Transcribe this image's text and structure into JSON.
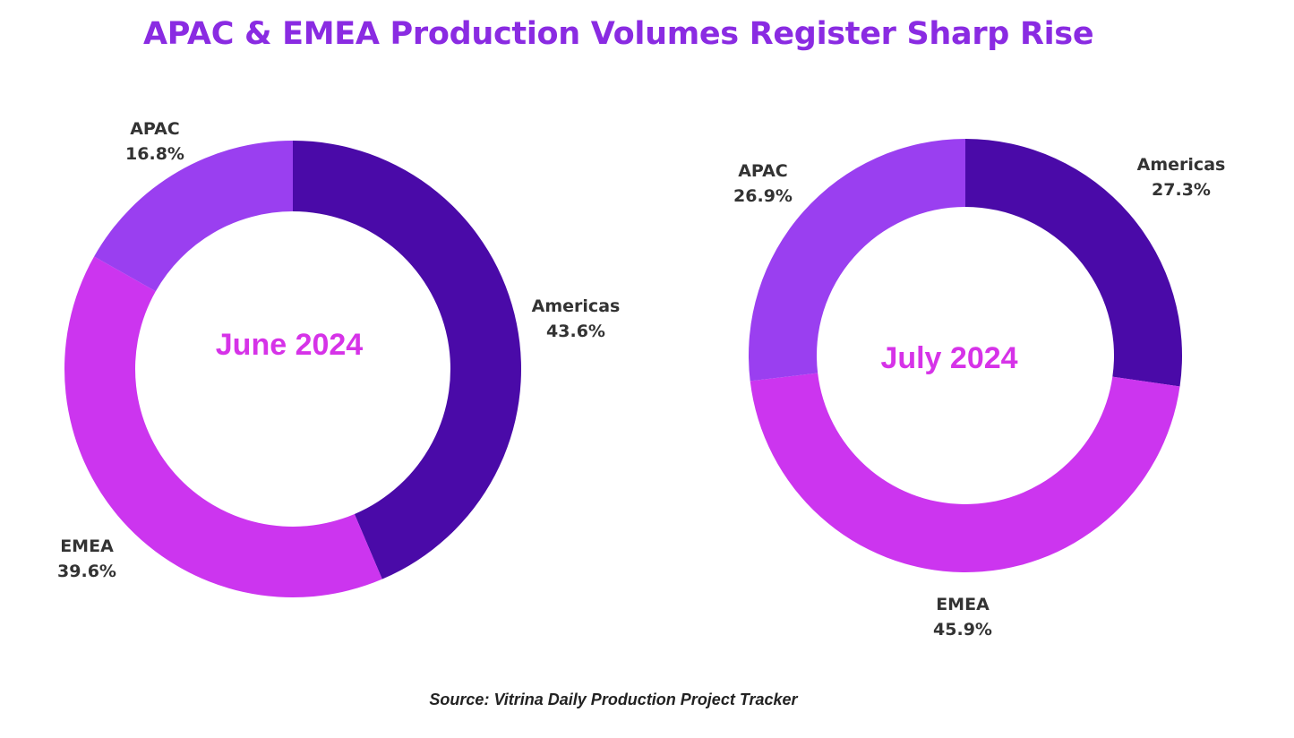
{
  "title": "APAC & EMEA Production Volumes Register Sharp Rise",
  "source": "Source: Vitrina Daily Production Project Tracker",
  "colors": {
    "title": "#8a2be2",
    "center_label": "#d633e8",
    "label_text": "#333333"
  },
  "chart_data": [
    {
      "type": "pie",
      "style": "donut",
      "center_label": "June 2024",
      "start_angle_deg": 0,
      "direction": "clockwise",
      "slices": [
        {
          "name": "Americas",
          "value": 43.6,
          "display": "43.6%",
          "color": "#4a0aa8"
        },
        {
          "name": "EMEA",
          "value": 39.6,
          "display": "39.6%",
          "color": "#cc35ef"
        },
        {
          "name": "APAC",
          "value": 16.8,
          "display": "16.8%",
          "color": "#9a3ff0"
        }
      ]
    },
    {
      "type": "pie",
      "style": "donut",
      "center_label": "July 2024",
      "start_angle_deg": 0,
      "direction": "clockwise",
      "slices": [
        {
          "name": "Americas",
          "value": 27.3,
          "display": "27.3%",
          "color": "#4a0aa8"
        },
        {
          "name": "EMEA",
          "value": 45.9,
          "display": "45.9%",
          "color": "#cc35ef"
        },
        {
          "name": "APAC",
          "value": 26.9,
          "display": "26.9%",
          "color": "#9a3ff0"
        }
      ]
    }
  ]
}
